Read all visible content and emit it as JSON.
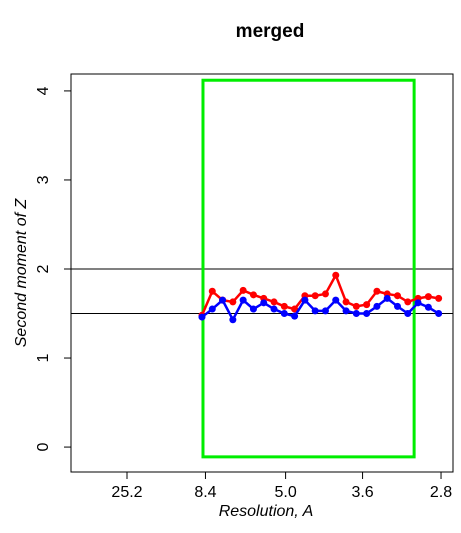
{
  "chart_data": {
    "type": "line",
    "title": "merged",
    "xlabel": "Resolution, A",
    "ylabel": "Second moment of Z",
    "x": [
      0.1155,
      0.1259,
      0.1363,
      0.1467,
      0.1571,
      0.1675,
      0.1779,
      0.1883,
      0.1987,
      0.2091,
      0.2195,
      0.2299,
      0.2403,
      0.2507,
      0.2611,
      0.2715,
      0.2819,
      0.2923,
      0.3027,
      0.3131,
      0.3235,
      0.3339,
      0.3443,
      0.3547
    ],
    "series": [
      {
        "color": "#ff0000",
        "values": [
          1.48,
          1.75,
          1.65,
          1.63,
          1.76,
          1.71,
          1.67,
          1.63,
          1.58,
          1.55,
          1.7,
          1.7,
          1.72,
          1.93,
          1.63,
          1.58,
          1.6,
          1.75,
          1.72,
          1.7,
          1.63,
          1.67,
          1.69,
          1.67
        ]
      },
      {
        "color": "#0000ff",
        "values": [
          1.46,
          1.55,
          1.65,
          1.43,
          1.65,
          1.55,
          1.62,
          1.55,
          1.5,
          1.47,
          1.65,
          1.53,
          1.53,
          1.65,
          1.53,
          1.5,
          1.5,
          1.58,
          1.67,
          1.58,
          1.5,
          1.62,
          1.57,
          1.5
        ]
      }
    ],
    "xlim": [
      -0.0169,
      0.3692
    ],
    "ylim": [
      -0.28,
      4.19
    ],
    "xticks": [
      {
        "value": 0.0397,
        "label": "25.2"
      },
      {
        "value": 0.119,
        "label": "8.4"
      },
      {
        "value": 0.2,
        "label": "5.0"
      },
      {
        "value": 0.2778,
        "label": "3.6"
      },
      {
        "value": 0.3571,
        "label": "2.8"
      }
    ],
    "yticks": [
      0,
      1,
      2,
      3,
      4
    ],
    "hlines": [
      2,
      1.5
    ],
    "region": {
      "xlim": [
        0.1165,
        0.3299
      ],
      "ylim": [
        -0.11,
        4.12
      ],
      "color": "#00ee00"
    }
  }
}
